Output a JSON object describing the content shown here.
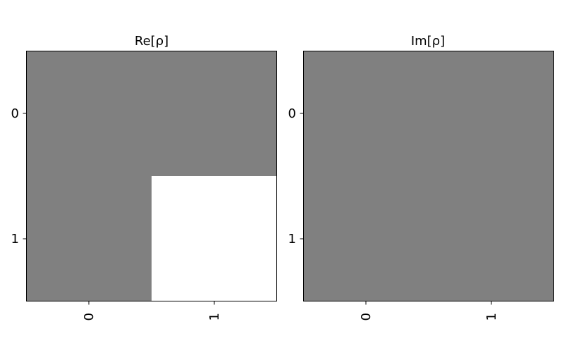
{
  "chart_data": [
    {
      "type": "heatmap",
      "title": "Re[ρ]",
      "x": [
        "0",
        "1"
      ],
      "y": [
        "0",
        "1"
      ],
      "values": [
        [
          0,
          0
        ],
        [
          0,
          1
        ]
      ],
      "vlim": [
        -1,
        1
      ],
      "colormap": "grayscale",
      "xlabel": "",
      "ylabel": "",
      "grid": false
    },
    {
      "type": "heatmap",
      "title": "Im[ρ]",
      "x": [
        "0",
        "1"
      ],
      "y": [
        "0",
        "1"
      ],
      "values": [
        [
          0,
          0
        ],
        [
          0,
          0
        ]
      ],
      "vlim": [
        -1,
        1
      ],
      "colormap": "grayscale",
      "xlabel": "",
      "ylabel": "",
      "grid": false
    }
  ]
}
